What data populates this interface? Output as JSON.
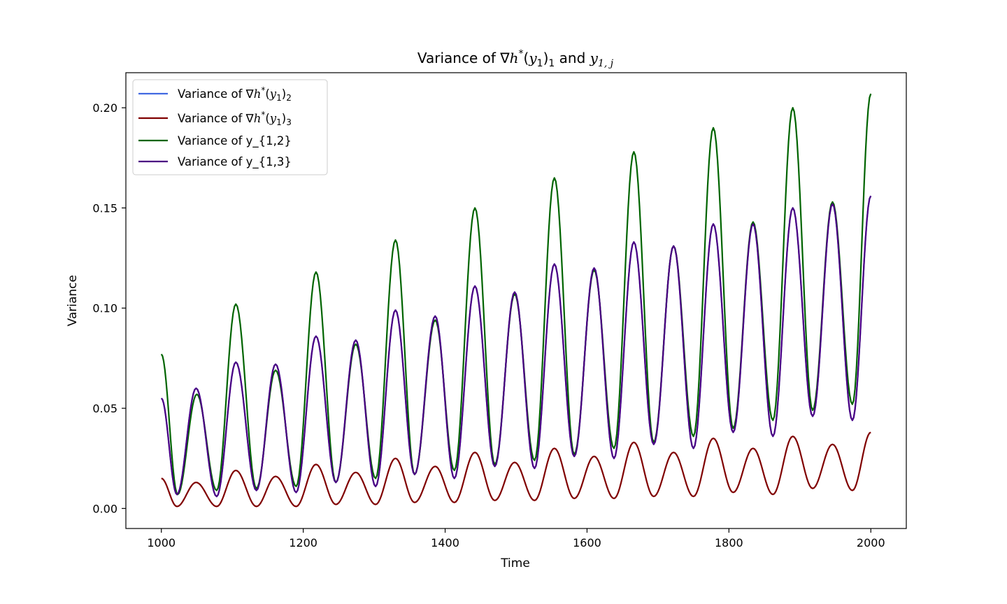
{
  "chart_data": {
    "type": "line",
    "title_parts": {
      "prefix": "Variance of ∇",
      "h": "h",
      "star": "*",
      "open": "(",
      "y": "y",
      "y_sub": "1",
      "close": ")",
      "sub": "1",
      "mid": " and ",
      "y2": "y",
      "y2_sub": "1, j"
    },
    "xlabel": "Time",
    "ylabel": "Variance",
    "xlim": [
      950,
      2050
    ],
    "ylim": [
      -0.01,
      0.2175
    ],
    "xticks": [
      1000,
      1200,
      1400,
      1600,
      1800,
      2000
    ],
    "xtick_labels": [
      "1000",
      "1200",
      "1400",
      "1600",
      "1800",
      "2000"
    ],
    "yticks": [
      0.0,
      0.05,
      0.1,
      0.15,
      0.2
    ],
    "ytick_labels": [
      "0.00",
      "0.05",
      "0.10",
      "0.15",
      "0.20"
    ],
    "grid": false,
    "legend_position": "upper-left",
    "legend": [
      {
        "label_prefix": "Variance of ∇",
        "h": "h",
        "star": "*",
        "open": "(",
        "y": "y",
        "y_sub": "1",
        "close": ")",
        "sub": "2",
        "color": "#4169E1"
      },
      {
        "label_prefix": "Variance of ∇",
        "h": "h",
        "star": "*",
        "open": "(",
        "y": "y",
        "y_sub": "1",
        "close": ")",
        "sub": "3",
        "color": "#800000"
      },
      {
        "label": "Variance of y_{1,2}",
        "color": "#006400"
      },
      {
        "label": "Variance of y_{1,3}",
        "color": "#4B0082"
      }
    ],
    "series": [
      {
        "name": "Variance of ∇h*(y1)2",
        "color": "#4169E1",
        "x": [
          1000,
          1022,
          1049,
          1078,
          1105,
          1134,
          1161,
          1190,
          1218,
          1246,
          1274,
          1302,
          1330,
          1357,
          1386,
          1413,
          1442,
          1470,
          1498,
          1526,
          1554,
          1582,
          1610,
          1638,
          1666,
          1694,
          1722,
          1750,
          1778,
          1806,
          1834,
          1862,
          1890,
          1918,
          1946,
          1974,
          2000
        ],
        "values": [
          0.055,
          0.007,
          0.06,
          0.006,
          0.073,
          0.009,
          0.072,
          0.008,
          0.086,
          0.013,
          0.084,
          0.011,
          0.099,
          0.017,
          0.096,
          0.015,
          0.111,
          0.021,
          0.108,
          0.02,
          0.122,
          0.026,
          0.12,
          0.025,
          0.133,
          0.032,
          0.131,
          0.03,
          0.142,
          0.038,
          0.142,
          0.036,
          0.15,
          0.046,
          0.152,
          0.044,
          0.156
        ]
      },
      {
        "name": "Variance of ∇h*(y1)3",
        "color": "#800000",
        "x": [
          1000,
          1022,
          1049,
          1078,
          1105,
          1134,
          1161,
          1190,
          1218,
          1246,
          1274,
          1302,
          1330,
          1357,
          1386,
          1413,
          1442,
          1470,
          1498,
          1526,
          1554,
          1582,
          1610,
          1638,
          1666,
          1694,
          1722,
          1750,
          1778,
          1806,
          1834,
          1862,
          1890,
          1918,
          1946,
          1974,
          2000
        ],
        "values": [
          0.015,
          0.001,
          0.013,
          0.001,
          0.019,
          0.001,
          0.016,
          0.001,
          0.022,
          0.002,
          0.018,
          0.002,
          0.025,
          0.003,
          0.021,
          0.003,
          0.028,
          0.004,
          0.023,
          0.004,
          0.03,
          0.005,
          0.026,
          0.005,
          0.033,
          0.006,
          0.028,
          0.006,
          0.035,
          0.008,
          0.03,
          0.007,
          0.036,
          0.01,
          0.032,
          0.009,
          0.038
        ]
      },
      {
        "name": "Variance of y_{1,2}",
        "color": "#006400",
        "x": [
          1000,
          1023,
          1050,
          1078,
          1105,
          1134,
          1161,
          1190,
          1218,
          1246,
          1274,
          1302,
          1330,
          1357,
          1386,
          1413,
          1442,
          1470,
          1498,
          1526,
          1554,
          1582,
          1610,
          1638,
          1666,
          1694,
          1722,
          1750,
          1778,
          1806,
          1834,
          1862,
          1890,
          1918,
          1946,
          1974,
          2000
        ],
        "values": [
          0.077,
          0.007,
          0.057,
          0.009,
          0.102,
          0.01,
          0.069,
          0.011,
          0.118,
          0.013,
          0.082,
          0.015,
          0.134,
          0.017,
          0.094,
          0.019,
          0.15,
          0.022,
          0.107,
          0.024,
          0.165,
          0.027,
          0.119,
          0.03,
          0.178,
          0.033,
          0.131,
          0.036,
          0.19,
          0.04,
          0.143,
          0.044,
          0.2,
          0.049,
          0.153,
          0.052,
          0.207
        ]
      },
      {
        "name": "Variance of y_{1,3}",
        "color": "#4B0082",
        "x": [
          1000,
          1022,
          1049,
          1078,
          1105,
          1134,
          1161,
          1190,
          1218,
          1246,
          1274,
          1302,
          1330,
          1357,
          1386,
          1413,
          1442,
          1470,
          1498,
          1526,
          1554,
          1582,
          1610,
          1638,
          1666,
          1694,
          1722,
          1750,
          1778,
          1806,
          1834,
          1862,
          1890,
          1918,
          1946,
          1974,
          2000
        ],
        "values": [
          0.055,
          0.007,
          0.06,
          0.006,
          0.073,
          0.009,
          0.072,
          0.008,
          0.086,
          0.013,
          0.084,
          0.011,
          0.099,
          0.017,
          0.096,
          0.015,
          0.111,
          0.021,
          0.108,
          0.02,
          0.122,
          0.026,
          0.12,
          0.025,
          0.133,
          0.032,
          0.131,
          0.03,
          0.142,
          0.038,
          0.142,
          0.036,
          0.15,
          0.046,
          0.152,
          0.044,
          0.156
        ]
      }
    ]
  }
}
